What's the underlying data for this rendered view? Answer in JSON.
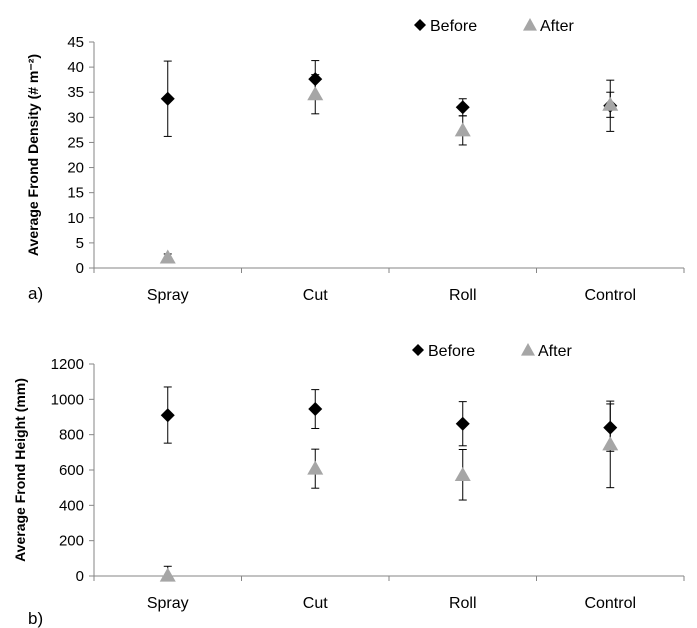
{
  "chart_data": [
    {
      "type": "scatter",
      "panel_label": "a)",
      "ylabel": "Average Frond Density (# m⁻²)",
      "categories": [
        "Spray",
        "Cut",
        "Roll",
        "Control"
      ],
      "ylim": [
        0,
        45
      ],
      "yticks": [
        0,
        5,
        10,
        15,
        20,
        25,
        30,
        35,
        40,
        45
      ],
      "legend_position": "top",
      "series": [
        {
          "name": "Before",
          "marker": "diamond",
          "color": "#000000",
          "values": [
            33.7,
            37.6,
            32.0,
            32.3
          ],
          "err_low": [
            26.2,
            33.9,
            30.3,
            27.2
          ],
          "err_high": [
            41.2,
            41.3,
            33.7,
            37.4
          ]
        },
        {
          "name": "After",
          "marker": "triangle",
          "color": "#a6a6a6",
          "values": [
            2.1,
            34.6,
            27.4,
            32.5
          ],
          "err_low": [
            1.5,
            30.7,
            24.5,
            30.0
          ],
          "err_high": [
            2.8,
            38.5,
            30.3,
            35.0
          ]
        }
      ]
    },
    {
      "type": "scatter",
      "panel_label": "b)",
      "ylabel": "Average Frond Height (mm)",
      "categories": [
        "Spray",
        "Cut",
        "Roll",
        "Control"
      ],
      "ylim": [
        0,
        1200
      ],
      "yticks": [
        0,
        200,
        400,
        600,
        800,
        1000,
        1200
      ],
      "legend_position": "top",
      "series": [
        {
          "name": "Before",
          "marker": "diamond",
          "color": "#000000",
          "values": [
            910,
            945,
            862,
            840
          ],
          "err_low": [
            752,
            835,
            737,
            706
          ],
          "err_high": [
            1070,
            1055,
            987,
            974
          ]
        },
        {
          "name": "After",
          "marker": "triangle",
          "color": "#a6a6a6",
          "values": [
            2,
            608,
            572,
            745
          ],
          "err_low": [
            0,
            497,
            430,
            500
          ],
          "err_high": [
            55,
            718,
            716,
            990
          ]
        }
      ]
    }
  ]
}
